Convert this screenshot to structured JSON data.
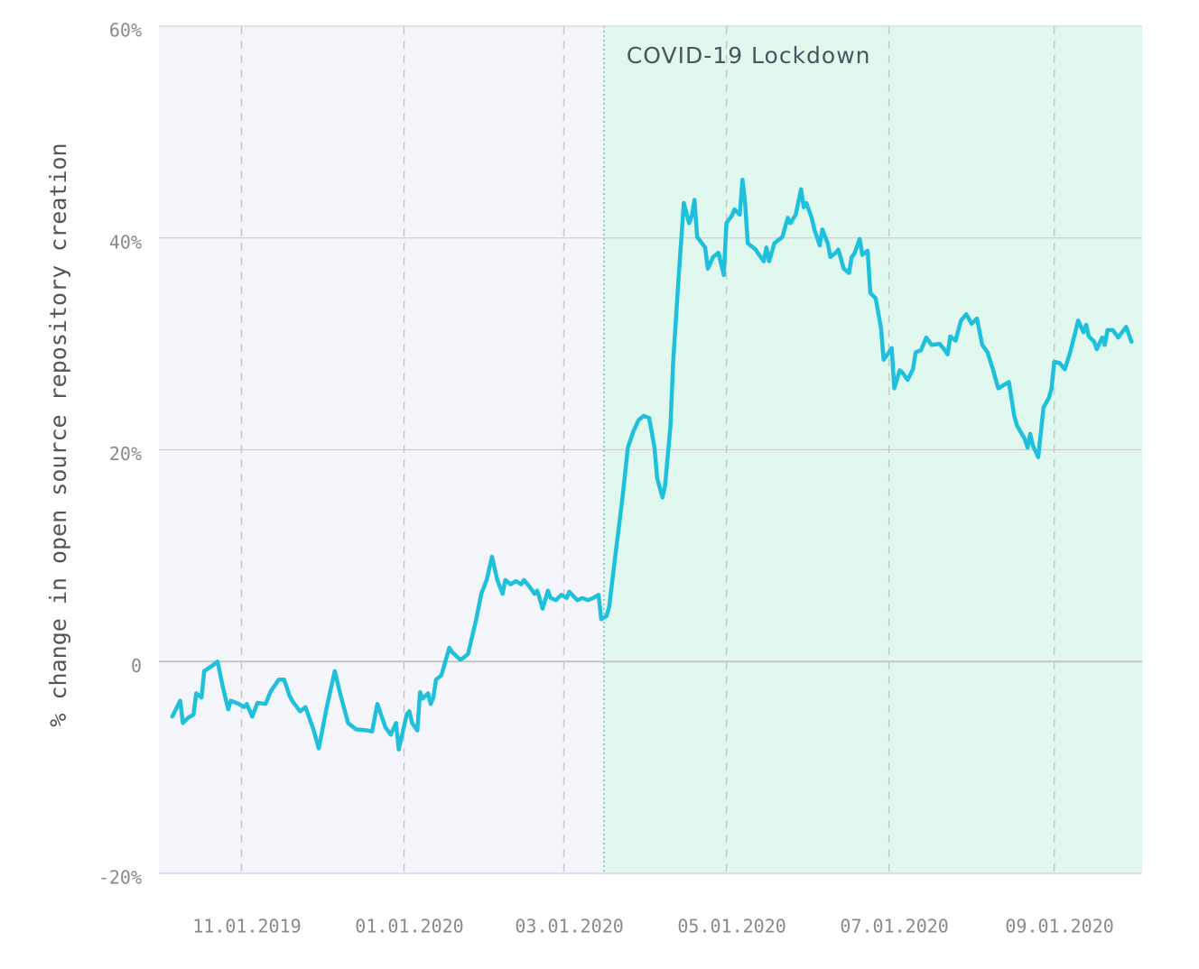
{
  "chart_data": {
    "type": "line",
    "y_label": "% change in open source repository creation",
    "color": "#1ec0dc",
    "xlim": [
      "2019-10-01",
      "2020-10-04"
    ],
    "ylim": [
      -20,
      60
    ],
    "xticks": [
      {
        "value": "2019-11-01",
        "label": "11.01.2019"
      },
      {
        "value": "2020-01-01",
        "label": "01.01.2020"
      },
      {
        "value": "2020-03-01",
        "label": "03.01.2020"
      },
      {
        "value": "2020-05-01",
        "label": "05.01.2020"
      },
      {
        "value": "2020-07-01",
        "label": "07.01.2020"
      },
      {
        "value": "2020-09-01",
        "label": "09.01.2020"
      }
    ],
    "yticks": [
      {
        "value": -20,
        "label": "-20%"
      },
      0,
      {
        "value": 20,
        "label": "20%"
      },
      {
        "value": 40,
        "label": "40%"
      },
      {
        "value": 60,
        "label": "60%"
      }
    ],
    "grid": true,
    "shaded_region": {
      "start": "2020-03-16",
      "label": "COVID-19 Lockdown",
      "color": "#e0f8ee"
    },
    "x": [
      "2019-10-06",
      "2019-10-09",
      "2019-10-10",
      "2019-10-12",
      "2019-10-14",
      "2019-10-15",
      "2019-10-17",
      "2019-10-18",
      "2019-10-21",
      "2019-10-23",
      "2019-10-25",
      "2019-10-27",
      "2019-10-28",
      "2019-10-31",
      "2019-11-02",
      "2019-11-03",
      "2019-11-05",
      "2019-11-07",
      "2019-11-10",
      "2019-11-12",
      "2019-11-15",
      "2019-11-17",
      "2019-11-19",
      "2019-11-20",
      "2019-11-23",
      "2019-11-25",
      "2019-11-28",
      "2019-11-30",
      "2019-12-03",
      "2019-12-06",
      "2019-12-08",
      "2019-12-11",
      "2019-12-14",
      "2019-12-18",
      "2019-12-20",
      "2019-12-22",
      "2019-12-25",
      "2019-12-27",
      "2019-12-29",
      "2019-12-30",
      "2020-01-02",
      "2020-01-03",
      "2020-01-04",
      "2020-01-06",
      "2020-01-07",
      "2020-01-08",
      "2020-01-10",
      "2020-01-11",
      "2020-01-12",
      "2020-01-13",
      "2020-01-15",
      "2020-01-18",
      "2020-01-19",
      "2020-01-22",
      "2020-01-23",
      "2020-01-25",
      "2020-01-28",
      "2020-01-30",
      "2020-02-01",
      "2020-02-03",
      "2020-02-05",
      "2020-02-07",
      "2020-02-08",
      "2020-02-10",
      "2020-02-12",
      "2020-02-14",
      "2020-02-15",
      "2020-02-17",
      "2020-02-19",
      "2020-02-20",
      "2020-02-22",
      "2020-02-24",
      "2020-02-25",
      "2020-02-27",
      "2020-02-29",
      "2020-03-02",
      "2020-03-03",
      "2020-03-06",
      "2020-03-08",
      "2020-03-10",
      "2020-03-12",
      "2020-03-14",
      "2020-03-15",
      "2020-03-17",
      "2020-03-18",
      "2020-03-20",
      "2020-03-23",
      "2020-03-25",
      "2020-03-27",
      "2020-03-29",
      "2020-03-31",
      "2020-04-02",
      "2020-04-04",
      "2020-04-05",
      "2020-04-07",
      "2020-04-08",
      "2020-04-10",
      "2020-04-11",
      "2020-04-13",
      "2020-04-15",
      "2020-04-17",
      "2020-04-18",
      "2020-04-19",
      "2020-04-20",
      "2020-04-23",
      "2020-04-24",
      "2020-04-26",
      "2020-04-28",
      "2020-04-30",
      "2020-05-01",
      "2020-05-03",
      "2020-05-04",
      "2020-05-06",
      "2020-05-07",
      "2020-05-08",
      "2020-05-09",
      "2020-05-12",
      "2020-05-13",
      "2020-05-15",
      "2020-05-16",
      "2020-05-17",
      "2020-05-19",
      "2020-05-21",
      "2020-05-22",
      "2020-05-24",
      "2020-05-25",
      "2020-05-27",
      "2020-05-29",
      "2020-05-30",
      "2020-05-31",
      "2020-06-02",
      "2020-06-03",
      "2020-06-05",
      "2020-06-06",
      "2020-06-08",
      "2020-06-09",
      "2020-06-11",
      "2020-06-12",
      "2020-06-14",
      "2020-06-16",
      "2020-06-17",
      "2020-06-18",
      "2020-06-20",
      "2020-06-21",
      "2020-06-23",
      "2020-06-24",
      "2020-06-26",
      "2020-06-28",
      "2020-06-29",
      "2020-07-01",
      "2020-07-02",
      "2020-07-03",
      "2020-07-05",
      "2020-07-06",
      "2020-07-08",
      "2020-07-10",
      "2020-07-11",
      "2020-07-13",
      "2020-07-15",
      "2020-07-17",
      "2020-07-20",
      "2020-07-22",
      "2020-07-23",
      "2020-07-24",
      "2020-07-26",
      "2020-07-28",
      "2020-07-30",
      "2020-08-01",
      "2020-08-03",
      "2020-08-05",
      "2020-08-07",
      "2020-08-09",
      "2020-08-11",
      "2020-08-15",
      "2020-08-17",
      "2020-08-18",
      "2020-08-21",
      "2020-08-22",
      "2020-08-23",
      "2020-08-24",
      "2020-08-26",
      "2020-08-28",
      "2020-08-30",
      "2020-08-31",
      "2020-09-01",
      "2020-09-03",
      "2020-09-05",
      "2020-09-07",
      "2020-09-10",
      "2020-09-12",
      "2020-09-13",
      "2020-09-14",
      "2020-09-16",
      "2020-09-17",
      "2020-09-19",
      "2020-09-20",
      "2020-09-21",
      "2020-09-23",
      "2020-09-25",
      "2020-09-28",
      "2020-09-30"
    ],
    "values": [
      -5.2,
      -3.7,
      -5.8,
      -5.3,
      -5.0,
      -3.0,
      -3.4,
      -0.9,
      -0.4,
      0,
      -2.4,
      -4.5,
      -3.7,
      -4.0,
      -4.3,
      -4.0,
      -5.2,
      -3.9,
      -4.0,
      -2.8,
      -1.7,
      -1.7,
      -3.2,
      -3.7,
      -4.7,
      -4.3,
      -6.4,
      -8.2,
      -4.3,
      -0.9,
      -3.0,
      -5.8,
      -6.4,
      -6.5,
      -6.6,
      -4.0,
      -6.2,
      -6.9,
      -5.8,
      -8.3,
      -5.0,
      -4.7,
      -5.8,
      -6.5,
      -2.9,
      -3.5,
      -3.0,
      -4.0,
      -3.4,
      -1.7,
      -1.3,
      1.3,
      0.9,
      0.2,
      0.3,
      0.7,
      3.9,
      6.4,
      7.7,
      9.9,
      7.7,
      6.4,
      7.7,
      7.3,
      7.6,
      7.3,
      7.7,
      7.1,
      6.4,
      6.7,
      5.0,
      6.7,
      6.0,
      5.8,
      6.3,
      6.0,
      6.6,
      5.8,
      6.0,
      5.8,
      6.0,
      6.3,
      4.0,
      4.3,
      5.2,
      9.4,
      15.5,
      20.2,
      21.7,
      22.8,
      23.2,
      23.0,
      20.2,
      17.3,
      15.5,
      16.7,
      22.3,
      28.3,
      36.1,
      43.3,
      41.4,
      42.1,
      43.6,
      40.1,
      39.1,
      37.1,
      38.2,
      38.6,
      36.5,
      41.4,
      42.1,
      42.7,
      42.2,
      45.5,
      43.3,
      39.5,
      38.9,
      38.5,
      37.8,
      39.1,
      37.8,
      39.5,
      39.9,
      40.1,
      41.9,
      41.4,
      42.2,
      44.6,
      42.9,
      43.3,
      41.9,
      40.8,
      39.3,
      40.8,
      39.5,
      38.2,
      38.6,
      38.9,
      37.1,
      36.7,
      38.2,
      38.5,
      39.9,
      38.4,
      38.8,
      34.8,
      34.3,
      31.5,
      28.5,
      29.2,
      29.6,
      25.8,
      27.5,
      27.3,
      26.6,
      27.6,
      29.2,
      29.4,
      30.6,
      29.9,
      30.0,
      29.4,
      29.0,
      30.7,
      30.3,
      32.2,
      32.8,
      31.9,
      32.4,
      29.9,
      29.2,
      27.6,
      25.8,
      26.4,
      23.2,
      22.3,
      21.0,
      20.2,
      21.5,
      20.4,
      19.3,
      24.0,
      24.9,
      25.8,
      28.3,
      28.2,
      27.6,
      29.2,
      32.2,
      31.1,
      31.8,
      30.7,
      30.2,
      29.5,
      30.6,
      29.9,
      31.3,
      31.3,
      30.6,
      31.6,
      30.2
    ]
  }
}
